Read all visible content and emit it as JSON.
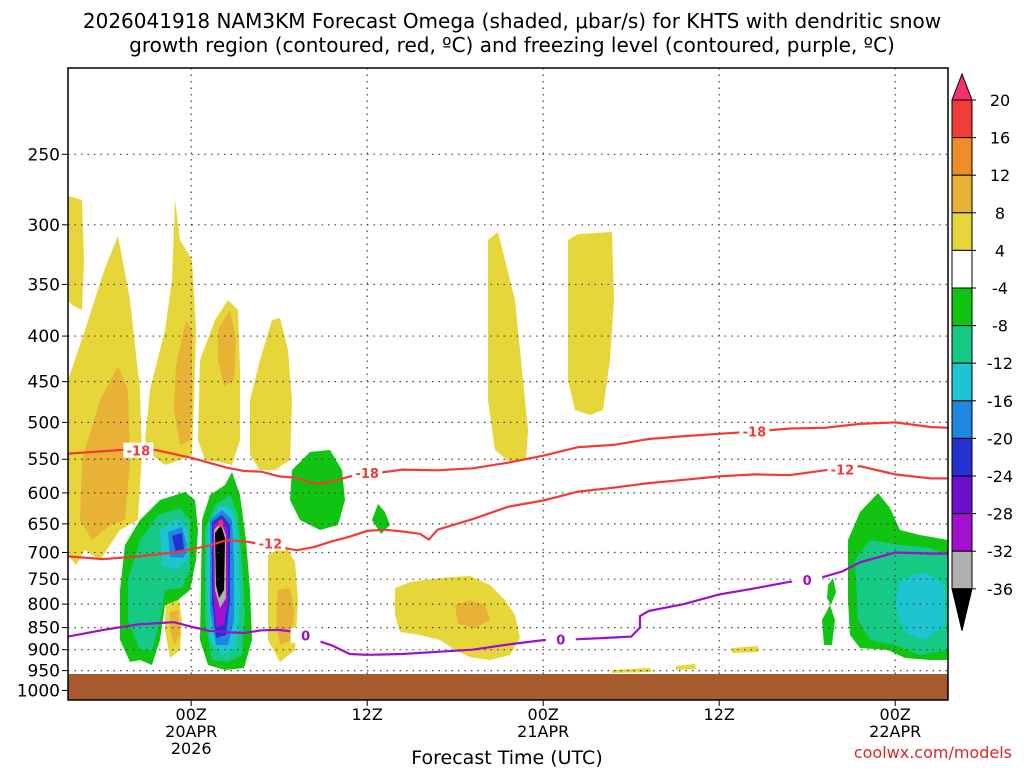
{
  "chart_data": {
    "type": "heatmap",
    "title_line1": "2026041918 NAM3KM Forecast Omega (shaded, μbar/s) for KHTS with dendritic snow",
    "title_line2": "growth region (contoured, red, ºC) and freezing level (contoured, purple, ºC)",
    "xlabel": "Forecast Time (UTC)",
    "ylabel": "",
    "watermark": "coolwx.com/models",
    "x_hours_range": [
      -7,
      43
    ],
    "y_pressure_range": [
      200,
      1025
    ],
    "y_ticks": [
      250,
      300,
      350,
      400,
      450,
      500,
      550,
      600,
      650,
      700,
      750,
      800,
      850,
      900,
      950,
      1000
    ],
    "y_tick_labels": [
      "250",
      "300",
      "350",
      "400",
      "450",
      "500",
      "550",
      "600",
      "650",
      "700",
      "750",
      "800",
      "850",
      "900",
      "950",
      "1000"
    ],
    "x_ticks": [
      {
        "hour": 0,
        "labels": [
          "00Z",
          "20APR",
          "2026"
        ]
      },
      {
        "hour": 10,
        "labels": [
          "12Z"
        ]
      },
      {
        "hour": 20,
        "labels": [
          "00Z",
          "21APR"
        ]
      },
      {
        "hour": 30,
        "labels": [
          "12Z"
        ]
      },
      {
        "hour": 40,
        "labels": [
          "00Z",
          "22APR"
        ]
      }
    ],
    "colorbar": {
      "labels": [
        "20",
        "16",
        "12",
        "8",
        "4",
        "-4",
        "-8",
        "-12",
        "-16",
        "-20",
        "-24",
        "-28",
        "-32",
        "-36"
      ],
      "colors": [
        "#f5336b",
        "#ef3c39",
        "#ee8c2a",
        "#e8b236",
        "#e6d639",
        "#ffffff",
        "#11c411",
        "#16c985",
        "#1ec4d2",
        "#1e87e0",
        "#2332d0",
        "#6d10cc",
        "#a410d0",
        "#b0b0b0",
        "#000000"
      ]
    },
    "contours": [
      {
        "series": "red",
        "label": "-18",
        "points": [
          [
            -7,
            542
          ],
          [
            -4,
            537
          ],
          [
            -2,
            537
          ],
          [
            0,
            548
          ],
          [
            2,
            562
          ],
          [
            3,
            567
          ],
          [
            4,
            568
          ],
          [
            5,
            575
          ],
          [
            6,
            577
          ],
          [
            7,
            586
          ],
          [
            8,
            583
          ],
          [
            9,
            575
          ],
          [
            10,
            572
          ],
          [
            12,
            565
          ],
          [
            14,
            566
          ],
          [
            16,
            563
          ],
          [
            18,
            555
          ],
          [
            20,
            545
          ],
          [
            22,
            533
          ],
          [
            24,
            530
          ],
          [
            26,
            522
          ],
          [
            28,
            518
          ],
          [
            30,
            515
          ],
          [
            32,
            512
          ],
          [
            34,
            508
          ],
          [
            36,
            507
          ],
          [
            38,
            502
          ],
          [
            40,
            500
          ],
          [
            42,
            506
          ],
          [
            43,
            507
          ]
        ]
      },
      {
        "series": "red",
        "label": "-12",
        "points": [
          [
            -7,
            707
          ],
          [
            -5,
            712
          ],
          [
            -3,
            707
          ],
          [
            -1,
            700
          ],
          [
            0,
            694
          ],
          [
            1,
            688
          ],
          [
            2,
            678
          ],
          [
            3,
            680
          ],
          [
            4,
            685
          ],
          [
            5,
            690
          ],
          [
            6,
            696
          ],
          [
            7,
            690
          ],
          [
            8,
            680
          ],
          [
            9,
            672
          ],
          [
            10,
            662
          ],
          [
            11,
            660
          ],
          [
            12,
            663
          ],
          [
            13,
            667
          ],
          [
            13.5,
            677
          ],
          [
            14,
            660
          ],
          [
            16,
            642
          ],
          [
            18,
            622
          ],
          [
            20,
            612
          ],
          [
            22,
            598
          ],
          [
            24,
            592
          ],
          [
            26,
            585
          ],
          [
            28,
            580
          ],
          [
            30,
            575
          ],
          [
            32,
            572
          ],
          [
            34,
            573
          ],
          [
            36,
            566
          ],
          [
            38,
            560
          ],
          [
            40,
            572
          ],
          [
            42,
            578
          ],
          [
            43,
            578
          ]
        ]
      },
      {
        "series": "purple",
        "label": "0",
        "points": [
          [
            -7,
            870
          ],
          [
            -5,
            855
          ],
          [
            -3,
            843
          ],
          [
            -1,
            838
          ],
          [
            0,
            848
          ],
          [
            1,
            857
          ],
          [
            2,
            860
          ],
          [
            3,
            862
          ],
          [
            4,
            856
          ],
          [
            5,
            855
          ],
          [
            6,
            860
          ],
          [
            7,
            877
          ],
          [
            8,
            890
          ],
          [
            9,
            910
          ],
          [
            10,
            912
          ],
          [
            12,
            910
          ],
          [
            14,
            905
          ],
          [
            16,
            900
          ],
          [
            18,
            888
          ],
          [
            20,
            878
          ],
          [
            22,
            876
          ],
          [
            24,
            872
          ],
          [
            25,
            870
          ],
          [
            25.5,
            850
          ],
          [
            25.5,
            825
          ],
          [
            26,
            814
          ],
          [
            28,
            800
          ],
          [
            30,
            780
          ],
          [
            32,
            768
          ],
          [
            34,
            755
          ],
          [
            35,
            752
          ],
          [
            36,
            745
          ],
          [
            37,
            735
          ],
          [
            38,
            718
          ],
          [
            40,
            700
          ],
          [
            42,
            702
          ],
          [
            43,
            702
          ]
        ]
      }
    ],
    "series": [
      {
        "name": "omega +4 (yellow)",
        "values": [
          4
        ]
      },
      {
        "name": "omega +8 (gold)",
        "values": [
          8
        ]
      },
      {
        "name": "omega -4 (green)",
        "values": [
          -4
        ]
      },
      {
        "name": "omega -8 (teal)",
        "values": [
          -8
        ]
      }
    ]
  }
}
